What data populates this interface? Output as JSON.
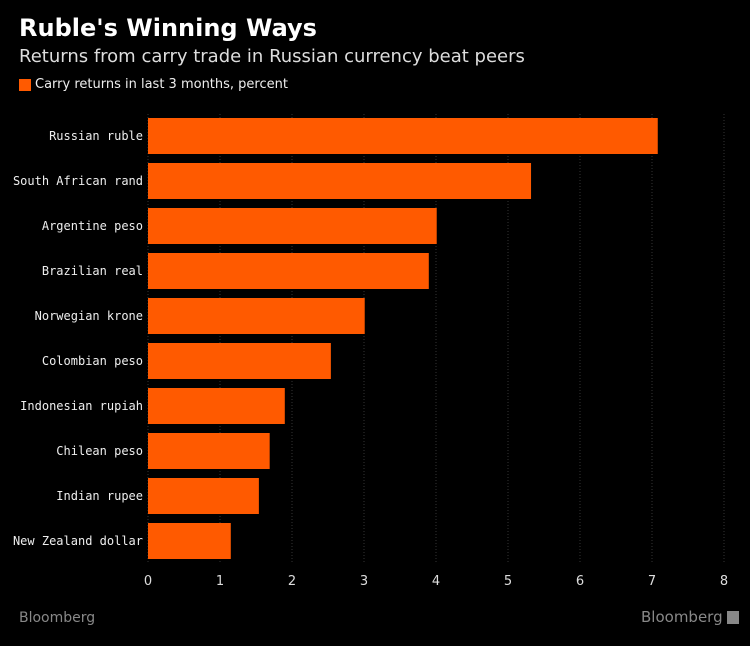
{
  "chart_data": {
    "type": "bar",
    "orientation": "horizontal",
    "title": "Ruble's Winning Ways",
    "subtitle": "Returns from carry trade in Russian currency beat peers",
    "legend": [
      "Carry returns in last 3 months, percent"
    ],
    "legend_placement": "top-left",
    "categories": [
      "Russian ruble",
      "South African rand",
      "Argentine peso",
      "Brazilian real",
      "Norwegian krone",
      "Colombian peso",
      "Indonesian rupiah",
      "Chilean peso",
      "Indian rupee",
      "New Zealand dollar"
    ],
    "values": [
      7.08,
      5.32,
      4.01,
      3.9,
      3.01,
      2.54,
      1.9,
      1.69,
      1.54,
      1.15
    ],
    "xlim": [
      0,
      8
    ],
    "xticks": [
      "0",
      "1",
      "2",
      "3",
      "4",
      "5",
      "6",
      "7",
      "8"
    ],
    "grid": true,
    "color": "#ff5a00"
  },
  "footer": {
    "source": "Bloomberg",
    "logo": "Bloomberg"
  }
}
